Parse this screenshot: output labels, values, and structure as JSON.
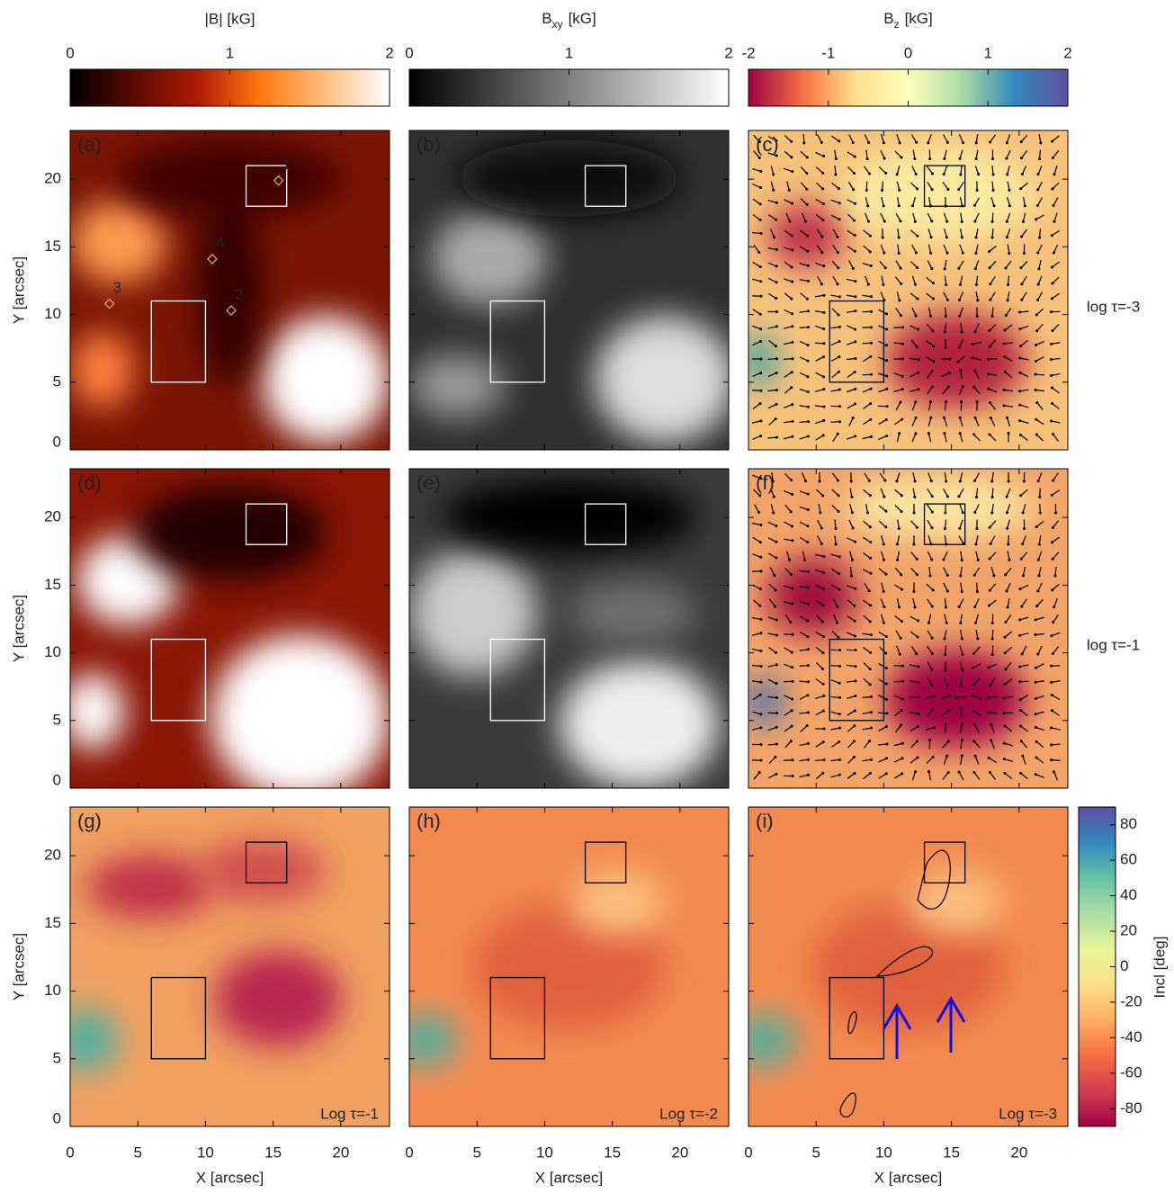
{
  "chart_data": {
    "type": "image-grid",
    "colorbars": [
      {
        "title": "|B| [kG]",
        "lim": [
          0,
          2
        ],
        "ticks": [
          0,
          1,
          2
        ],
        "colors": [
          "#000000",
          "#5a0a02",
          "#b01a05",
          "#ff7a10",
          "#ffc080",
          "#ffffff"
        ]
      },
      {
        "title_main": "B",
        "title_sub": "xy",
        "title_unit": "[kG]",
        "lim": [
          0,
          2
        ],
        "ticks": [
          0,
          1,
          2
        ],
        "colors": [
          "#000000",
          "#808080",
          "#ffffff"
        ]
      },
      {
        "title_main": "B",
        "title_sub": "z",
        "title_unit": "[kG]",
        "lim": [
          -2,
          2
        ],
        "ticks": [
          -2,
          -1,
          0,
          1,
          2
        ],
        "colors": [
          "#9e0142",
          "#f46d43",
          "#fee08b",
          "#ffffbf",
          "#abdda4",
          "#3288bd",
          "#5e4fa2"
        ]
      }
    ],
    "incl_colorbar": {
      "title": "Incl [deg]",
      "lim": [
        -90,
        90
      ],
      "ticks": [
        -80,
        -60,
        -40,
        -20,
        0,
        20,
        40,
        60,
        80
      ],
      "colors": [
        "#9e0142",
        "#d53e4f",
        "#f46d43",
        "#fdae61",
        "#fee08b",
        "#e6f598",
        "#abdda4",
        "#66c2a5",
        "#3288bd",
        "#5e4fa2"
      ]
    },
    "axes": {
      "xlabel": "X [arcsec]",
      "ylabel": "Y [arcsec]",
      "xlim": [
        0,
        23.6
      ],
      "ylim": [
        0,
        23.6
      ],
      "xticks": [
        0,
        5,
        10,
        15,
        20
      ],
      "yticks": [
        0,
        5,
        10,
        15,
        20
      ]
    },
    "row_labels": [
      "log τ=-3",
      "log τ=-1"
    ],
    "panels": [
      {
        "label": "(a)",
        "label_color": "#dddddd",
        "box_color": "#ffffff"
      },
      {
        "label": "(b)",
        "label_color": "#dddddd",
        "box_color": "#ffffff"
      },
      {
        "label": "(c)",
        "label_color": "#222222",
        "box_color": "#000000"
      },
      {
        "label": "(d)",
        "label_color": "#dddddd",
        "box_color": "#ffffff"
      },
      {
        "label": "(e)",
        "label_color": "#dddddd",
        "box_color": "#ffffff"
      },
      {
        "label": "(f)",
        "label_color": "#222222",
        "box_color": "#000000"
      },
      {
        "label": "(g)",
        "label_color": "#222222",
        "box_color": "#000000",
        "note": "Log τ=-1"
      },
      {
        "label": "(h)",
        "label_color": "#222222",
        "box_color": "#000000",
        "note": "Log τ=-2"
      },
      {
        "label": "(i)",
        "label_color": "#222222",
        "box_color": "#000000",
        "note": "Log τ=-3"
      }
    ],
    "boxes": [
      {
        "x": [
          13,
          16
        ],
        "y": [
          18,
          21
        ]
      },
      {
        "x": [
          6,
          10
        ],
        "y": [
          5,
          11
        ]
      }
    ],
    "points": [
      {
        "label": "1",
        "x": 15.4,
        "y": 19.9
      },
      {
        "label": "2",
        "x": 11.9,
        "y": 10.3
      },
      {
        "label": "3",
        "x": 2.9,
        "y": 10.8
      },
      {
        "label": "4",
        "x": 10.5,
        "y": 14.1
      }
    ],
    "point_color": "#c8b060"
  }
}
